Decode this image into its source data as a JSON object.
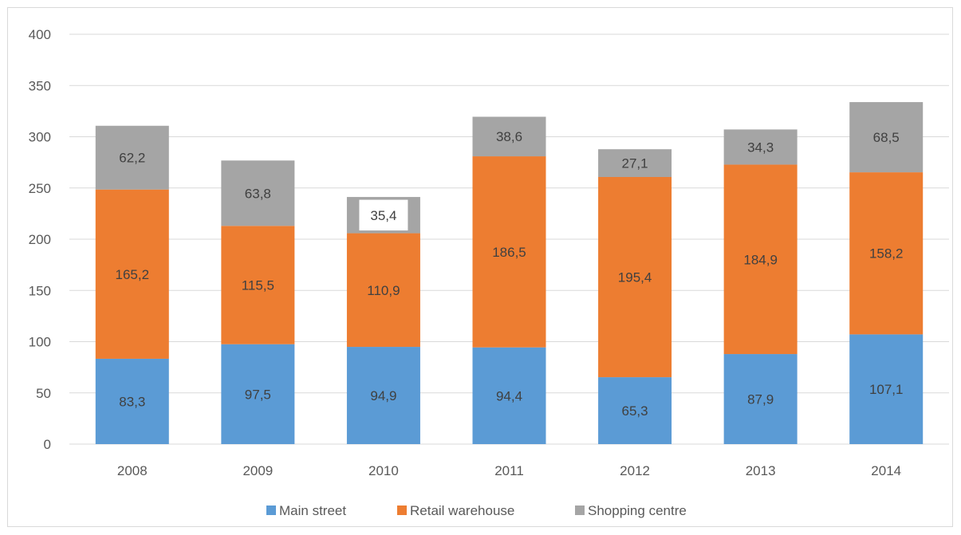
{
  "chart_data": {
    "type": "bar",
    "stacked": true,
    "categories": [
      "2008",
      "2009",
      "2010",
      "2011",
      "2012",
      "2013",
      "2014"
    ],
    "series": [
      {
        "name": "Main street",
        "color": "#5b9bd5",
        "values": [
          83.3,
          97.5,
          94.9,
          94.4,
          65.3,
          87.9,
          107.1
        ],
        "labels": [
          "83,3",
          "97,5",
          "94,9",
          "94,4",
          "65,3",
          "87,9",
          "107,1"
        ]
      },
      {
        "name": "Retail warehouse",
        "color": "#ed7d31",
        "values": [
          165.2,
          115.5,
          110.9,
          186.5,
          195.4,
          184.9,
          158.2
        ],
        "labels": [
          "165,2",
          "115,5",
          "110,9",
          "186,5",
          "195,4",
          "184,9",
          "158,2"
        ]
      },
      {
        "name": "Shopping centre",
        "color": "#a5a5a5",
        "values": [
          62.2,
          63.8,
          35.4,
          38.6,
          27.1,
          34.3,
          68.5
        ],
        "labels": [
          "62,2",
          "63,8",
          "35,4",
          "38,6",
          "27,1",
          "34,3",
          "68,5"
        ]
      }
    ],
    "highlighted": {
      "series": 2,
      "category": 2
    },
    "yticks": [
      "0",
      "50",
      "100",
      "150",
      "200",
      "250",
      "300",
      "350",
      "400"
    ],
    "ylim": [
      0,
      400
    ],
    "grid": true,
    "legend_position": "bottom",
    "title": "",
    "xlabel": "",
    "ylabel": ""
  }
}
